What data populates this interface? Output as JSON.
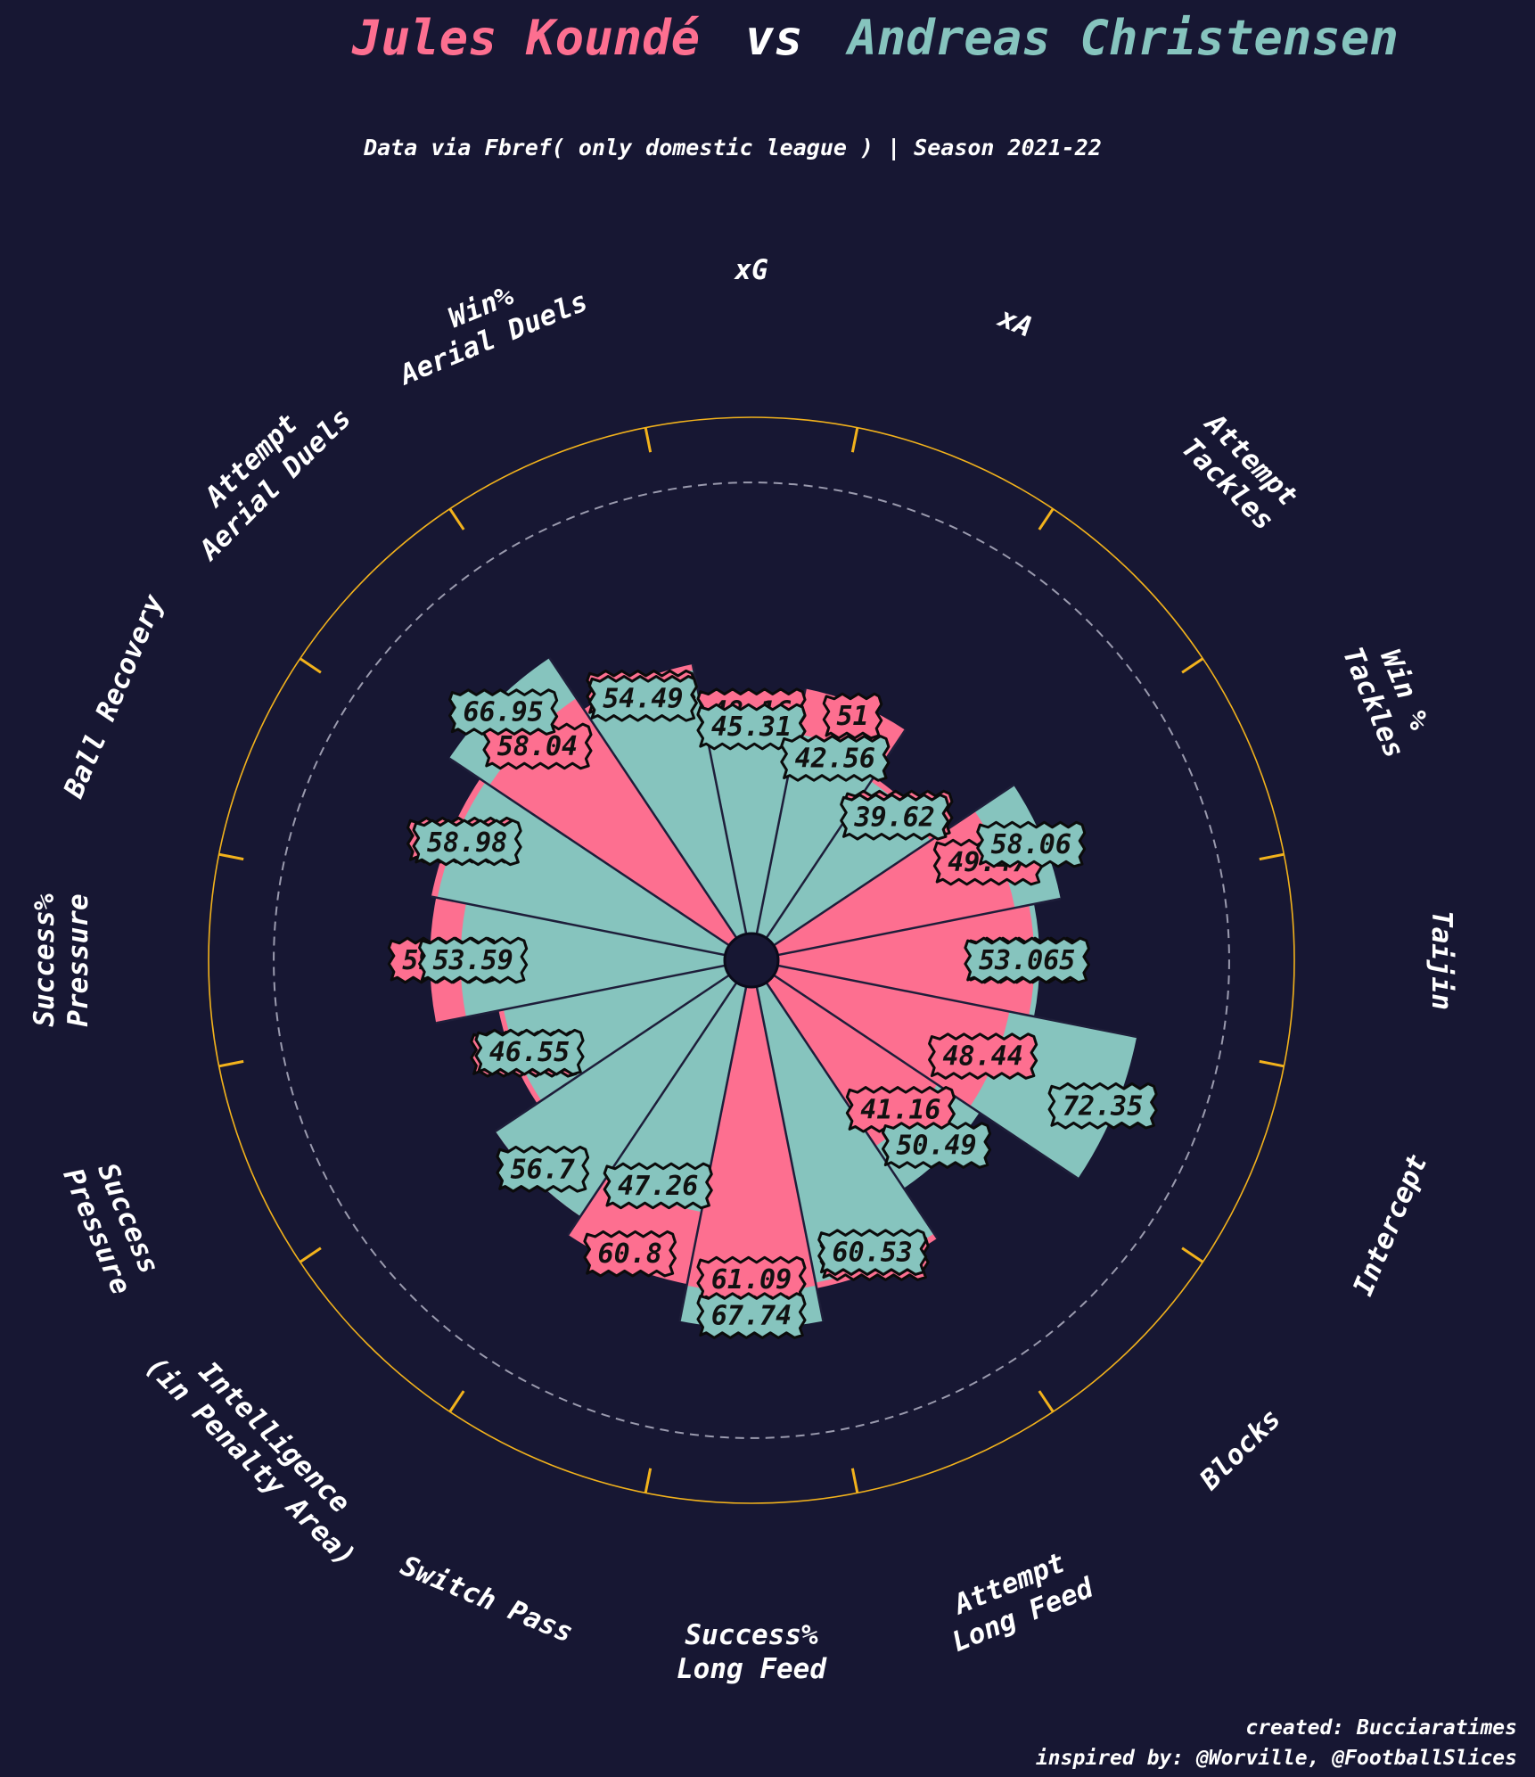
{
  "title": {
    "player1": "Jules Koundé",
    "vs": "vs",
    "player2": "Andreas Christensen"
  },
  "subtitle": "Data via Fbref( only domestic league ) | Season 2021-22",
  "credits": {
    "line1": "created: Bucciaratimes",
    "line2": "inspired by: @Worville, @FootballSlices"
  },
  "colors": {
    "background": "#171733",
    "player1": "#fd6f90",
    "player2": "#86c4be",
    "outer_ring": "#f2b21c",
    "divider": "#1e1e3a",
    "dashed_ring": "#9a9aae"
  },
  "chart_data": {
    "type": "polar-bar",
    "radial_max": 100,
    "dashed_ring_value": 88,
    "categories": [
      "xG",
      "xA",
      "Attempt\nTackles",
      "Win %\nTackles",
      "Taijin",
      "Intercept",
      "Blocks",
      "Attempt\nLong Feed",
      "Success%\nLong Feed",
      "Switch Pass",
      "Intelligence\n(in Penalty Area)",
      "Success\nPressure",
      "Success%\nPressure",
      "Ball Recovery",
      "Attempt\nAerial Duels",
      "Win%\nAerial Duels"
    ],
    "series": [
      {
        "name": "Jules Koundé",
        "values": [
          48.16,
          51.0,
          40.59,
          49.47,
          52.11,
          48.44,
          41.16,
          61.58,
          61.09,
          60.8,
          56.7,
          47.47,
          59.22,
          60.13,
          58.04,
          55.58
        ]
      },
      {
        "name": "Andreas Christensen",
        "values": [
          45.31,
          42.56,
          39.62,
          58.06,
          53.065,
          72.35,
          50.49,
          60.53,
          67.74,
          47.26,
          56.7,
          46.55,
          53.59,
          58.98,
          66.95,
          54.49
        ]
      }
    ]
  }
}
